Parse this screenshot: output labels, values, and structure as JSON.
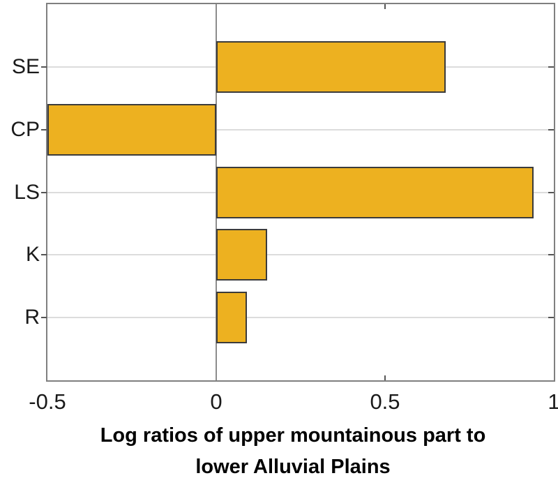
{
  "chart_data": {
    "type": "bar",
    "orientation": "horizontal",
    "categories": [
      "SE",
      "CP",
      "LS",
      "K",
      "R"
    ],
    "values": [
      0.68,
      -0.5,
      0.94,
      0.15,
      0.09
    ],
    "title": "",
    "xlabel_line1": "Log ratios of upper mountainous part to",
    "xlabel_line2": "lower Alluvial Plains",
    "ylabel": "",
    "xlim": [
      -0.5,
      1
    ],
    "xticks": [
      -0.5,
      0,
      0.5,
      1
    ],
    "xtick_labels": [
      "-0.5",
      "0",
      "0.5",
      "1"
    ],
    "grid": "horizontal-gridlines-on",
    "legend": "none",
    "colors": {
      "bar_fill": "#EDB120",
      "bar_edge": "#3b3b3b",
      "axis_box": "#7f7f7f",
      "gridline": "#dcdcdc",
      "zero_line": "#8c8c8c",
      "text": "#1a1a1a"
    }
  }
}
